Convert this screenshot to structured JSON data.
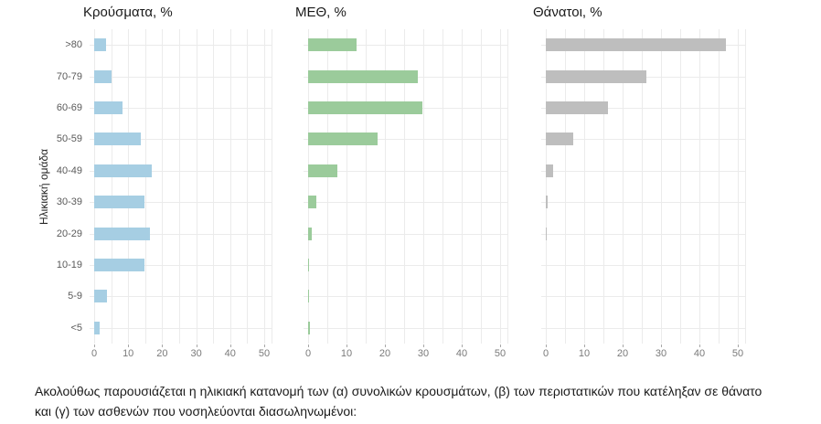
{
  "figure": {
    "caption": "Ακολούθως παρουσιάζεται η ηλικιακή κατανομή των (α) συνολικών κρουσμάτων, (β) των περιστατικών που κατέληξαν σε θάνατο και (γ) των ασθενών που νοσηλεύονται διασωληνωμένοι:"
  },
  "colors": {
    "cases_bar": "#a6cee3",
    "icu_bar": "#9bcb9b",
    "deaths_bar": "#bebebe",
    "gridline": "#ebebeb",
    "axis_text": "#5a5a5a"
  },
  "chart_data": [
    {
      "type": "bar",
      "orientation": "horizontal",
      "title": "Κρούσματα, %",
      "ylabel": "Ηλικιακή ομάδα",
      "categories": [
        ">80",
        "70-79",
        "60-69",
        "50-59",
        "40-49",
        "30-39",
        "20-29",
        "10-19",
        "5-9",
        "<5"
      ],
      "values": [
        3.5,
        5.0,
        8.4,
        13.7,
        17.0,
        14.7,
        16.3,
        14.7,
        3.7,
        1.5
      ],
      "color": "#a6cee3",
      "xlim": [
        0,
        50
      ],
      "xticks": [
        0,
        10,
        20,
        30,
        40,
        50
      ],
      "grid": "major+minor vertical every 5, horizontal per category",
      "legend": "none"
    },
    {
      "type": "bar",
      "orientation": "horizontal",
      "title": "ΜΕΘ, %",
      "ylabel": "",
      "categories": [
        ">80",
        "70-79",
        "60-69",
        "50-59",
        "40-49",
        "30-39",
        "20-29",
        "10-19",
        "5-9",
        "<5"
      ],
      "values": [
        12.5,
        28.5,
        29.7,
        18.0,
        7.5,
        2.2,
        0.9,
        0.3,
        0.1,
        0.4
      ],
      "color": "#9bcb9b",
      "xlim": [
        0,
        50
      ],
      "xticks": [
        0,
        10,
        20,
        30,
        40,
        50
      ],
      "grid": "major+minor vertical every 5, horizontal per category",
      "legend": "none"
    },
    {
      "type": "bar",
      "orientation": "horizontal",
      "title": "Θάνατοι, %",
      "ylabel": "",
      "categories": [
        ">80",
        "70-79",
        "60-69",
        "50-59",
        "40-49",
        "30-39",
        "20-29",
        "10-19",
        "5-9",
        "<5"
      ],
      "values": [
        46.9,
        26.3,
        16.3,
        7.1,
        2.0,
        0.5,
        0.2,
        0.0,
        0.0,
        0.0
      ],
      "color": "#bebebe",
      "xlim": [
        0,
        50
      ],
      "xticks": [
        0,
        10,
        20,
        30,
        40,
        50
      ],
      "grid": "major+minor vertical every 5, horizontal per category",
      "legend": "none"
    }
  ]
}
